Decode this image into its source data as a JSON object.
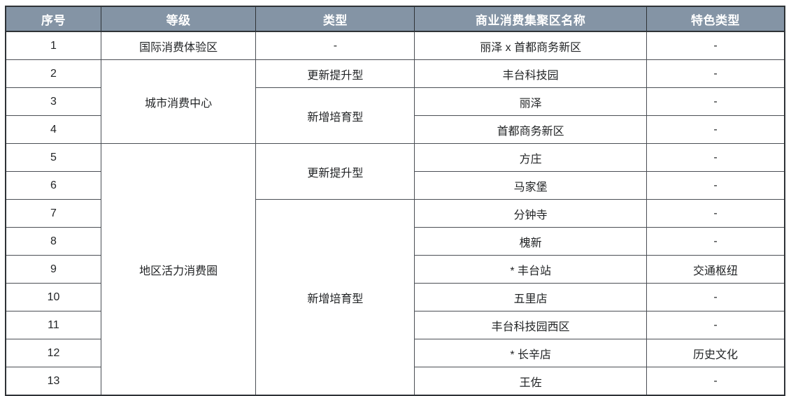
{
  "colors": {
    "header_bg": "#8494a5",
    "header_text": "#ffffff",
    "body_text": "#222426",
    "border_inner": "#4a4e54",
    "border_outer": "#2e3236"
  },
  "table": {
    "columns": [
      {
        "label": "序号",
        "width": "11.9%"
      },
      {
        "label": "等级",
        "width": "19.9%"
      },
      {
        "label": "类型",
        "width": "20.4%"
      },
      {
        "label": "商业消费集聚区名称",
        "width": "30.2%"
      },
      {
        "label": "特色类型",
        "width": "17.6%"
      }
    ],
    "rows": [
      [
        {
          "text": "1"
        },
        {
          "text": "国际消费体验区"
        },
        {
          "text": "-"
        },
        {
          "text": "丽泽 x 首都商务新区"
        },
        {
          "text": "-"
        }
      ],
      [
        {
          "text": "2"
        },
        {
          "text": "城市消费中心",
          "rowspan": 3
        },
        {
          "text": "更新提升型"
        },
        {
          "text": "丰台科技园"
        },
        {
          "text": "-"
        }
      ],
      [
        {
          "text": "3"
        },
        {
          "text": "新增培育型",
          "rowspan": 2
        },
        {
          "text": "丽泽"
        },
        {
          "text": "-"
        }
      ],
      [
        {
          "text": "4"
        },
        {
          "text": "首都商务新区"
        },
        {
          "text": "-"
        }
      ],
      [
        {
          "text": "5"
        },
        {
          "text": "地区活力消费圈",
          "rowspan": 9
        },
        {
          "text": "更新提升型",
          "rowspan": 2
        },
        {
          "text": "方庄"
        },
        {
          "text": "-"
        }
      ],
      [
        {
          "text": "6"
        },
        {
          "text": "马家堡"
        },
        {
          "text": "-"
        }
      ],
      [
        {
          "text": "7"
        },
        {
          "text": "新增培育型",
          "rowspan": 7
        },
        {
          "text": "分钟寺"
        },
        {
          "text": "-"
        }
      ],
      [
        {
          "text": "8"
        },
        {
          "text": "槐新"
        },
        {
          "text": "-"
        }
      ],
      [
        {
          "text": "9"
        },
        {
          "text": "* 丰台站"
        },
        {
          "text": "交通枢纽"
        }
      ],
      [
        {
          "text": "10"
        },
        {
          "text": "五里店"
        },
        {
          "text": "-"
        }
      ],
      [
        {
          "text": "11"
        },
        {
          "text": "丰台科技园西区"
        },
        {
          "text": "-"
        }
      ],
      [
        {
          "text": "12"
        },
        {
          "text": "* 长辛店"
        },
        {
          "text": "历史文化"
        }
      ],
      [
        {
          "text": "13"
        },
        {
          "text": "王佐"
        },
        {
          "text": "-"
        }
      ]
    ]
  }
}
